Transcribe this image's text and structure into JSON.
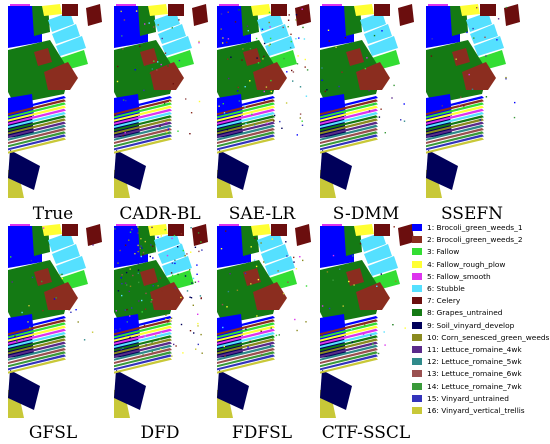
{
  "panels": [
    {
      "id": "true",
      "label": "True",
      "noise": 0
    },
    {
      "id": "cadr-bl",
      "label": "CADR-BL",
      "noise": 0.05
    },
    {
      "id": "sae-lr",
      "label": "SAE-LR",
      "noise": 0.1
    },
    {
      "id": "s-dmm",
      "label": "S-DMM",
      "noise": 0.03
    },
    {
      "id": "ssefn",
      "label": "SSEFN",
      "noise": 0.03
    },
    {
      "id": "gfsl",
      "label": "GFSL",
      "noise": 0.03
    },
    {
      "id": "dfd",
      "label": "DFD",
      "noise": 0.16
    },
    {
      "id": "fdfsl",
      "label": "FDFSL",
      "noise": 0.05
    },
    {
      "id": "ctf-sscl",
      "label": "CTF-SSCL",
      "noise": 0.03
    }
  ],
  "legend": [
    {
      "label": "1: Brocoli_green_weeds_1",
      "color": "#0000ff"
    },
    {
      "label": "2: Brocoli_green_weeds_2",
      "color": "#8b2d1f"
    },
    {
      "label": "3: Fallow",
      "color": "#33dd33"
    },
    {
      "label": "4: Fallow_rough_plow",
      "color": "#ffff33"
    },
    {
      "label": "5: Fallow_smooth",
      "color": "#dd33ee"
    },
    {
      "label": "6: Stubble",
      "color": "#55e0ff"
    },
    {
      "label": "7: Celery",
      "color": "#6b0e0e"
    },
    {
      "label": "8: Grapes_untrained",
      "color": "#147a14"
    },
    {
      "label": "9: Soil_vinyard_develop",
      "color": "#00005a"
    },
    {
      "label": "10: Corn_senesced_green_weeds",
      "color": "#8a8a1f"
    },
    {
      "label": "11: Lettuce_romaine_4wk",
      "color": "#5a2a8a"
    },
    {
      "label": "12: Lettuce_romaine_5wk",
      "color": "#2f8a8a"
    },
    {
      "label": "13: Lettuce_romaine_6wk",
      "color": "#9a5050"
    },
    {
      "label": "14: Lettuce_romaine_7wk",
      "color": "#3a9a3a"
    },
    {
      "label": "15: Vinyard_untrained",
      "color": "#3333bb"
    },
    {
      "label": "16: Vinyard_vertical_trellis",
      "color": "#c8c838"
    }
  ]
}
